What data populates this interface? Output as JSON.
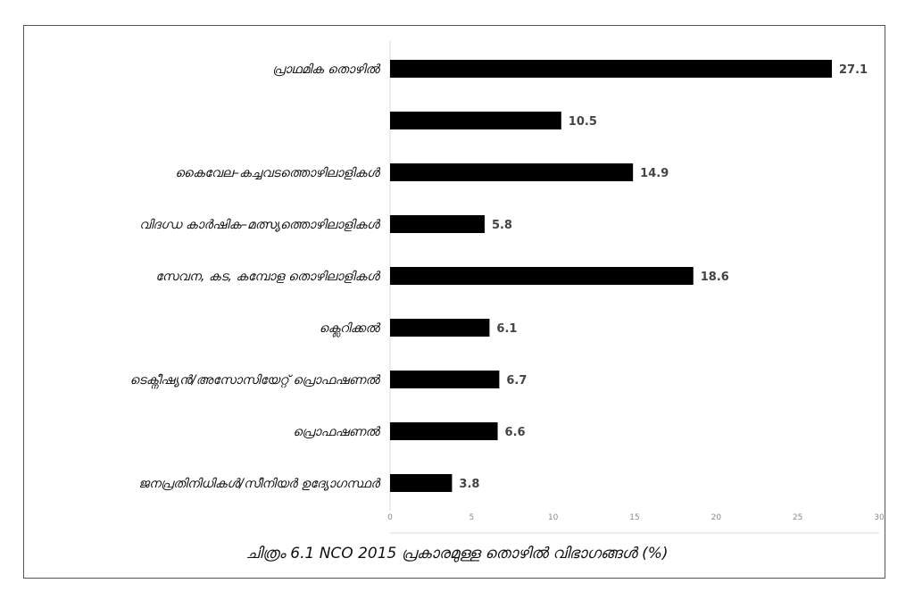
{
  "caption": "ചിത്രം 6.1 NCO 2015 പ്രകാരമുള്ള തൊഴിൽ വിഭാഗങ്ങൾ (%)",
  "chart_data": {
    "type": "bar",
    "orientation": "horizontal",
    "categories": [
      "പ്രാഥമിക തൊഴിൽ",
      "",
      "കൈവേല–കച്ചവടത്തൊഴിലാളികൾ",
      "വിദഗ്ധ കാർഷിക–മത്സ്യത്തൊഴിലാളികൾ",
      "സേവന, കട, കമ്പോള തൊഴിലാളികൾ",
      "ക്ലെറിക്കൽ",
      "ടെക്നീഷ്യൻ/അസോസിയേറ്റ് പ്രൊഫഷണൽ",
      "പ്രൊഫഷണൽ",
      "ജനപ്രതിനിധികൾ/സീനിയർ ഉദ്യോഗസ്ഥർ"
    ],
    "values": [
      27.1,
      10.5,
      14.9,
      5.8,
      18.6,
      6.1,
      6.7,
      6.6,
      3.8
    ],
    "value_labels": [
      "27.1",
      "10.5",
      "14.9",
      "5.8",
      "18.6",
      "6.1",
      "6.7",
      "6.6",
      "3.8"
    ],
    "x_ticks": [
      0,
      5,
      10,
      15,
      20,
      25,
      30
    ],
    "x_tick_labels": [
      "0",
      "5",
      "10",
      "15",
      "20",
      "25",
      "30"
    ],
    "xlim": [
      0,
      30
    ],
    "bar_color": "#000000",
    "grid": false,
    "legend": "none"
  }
}
